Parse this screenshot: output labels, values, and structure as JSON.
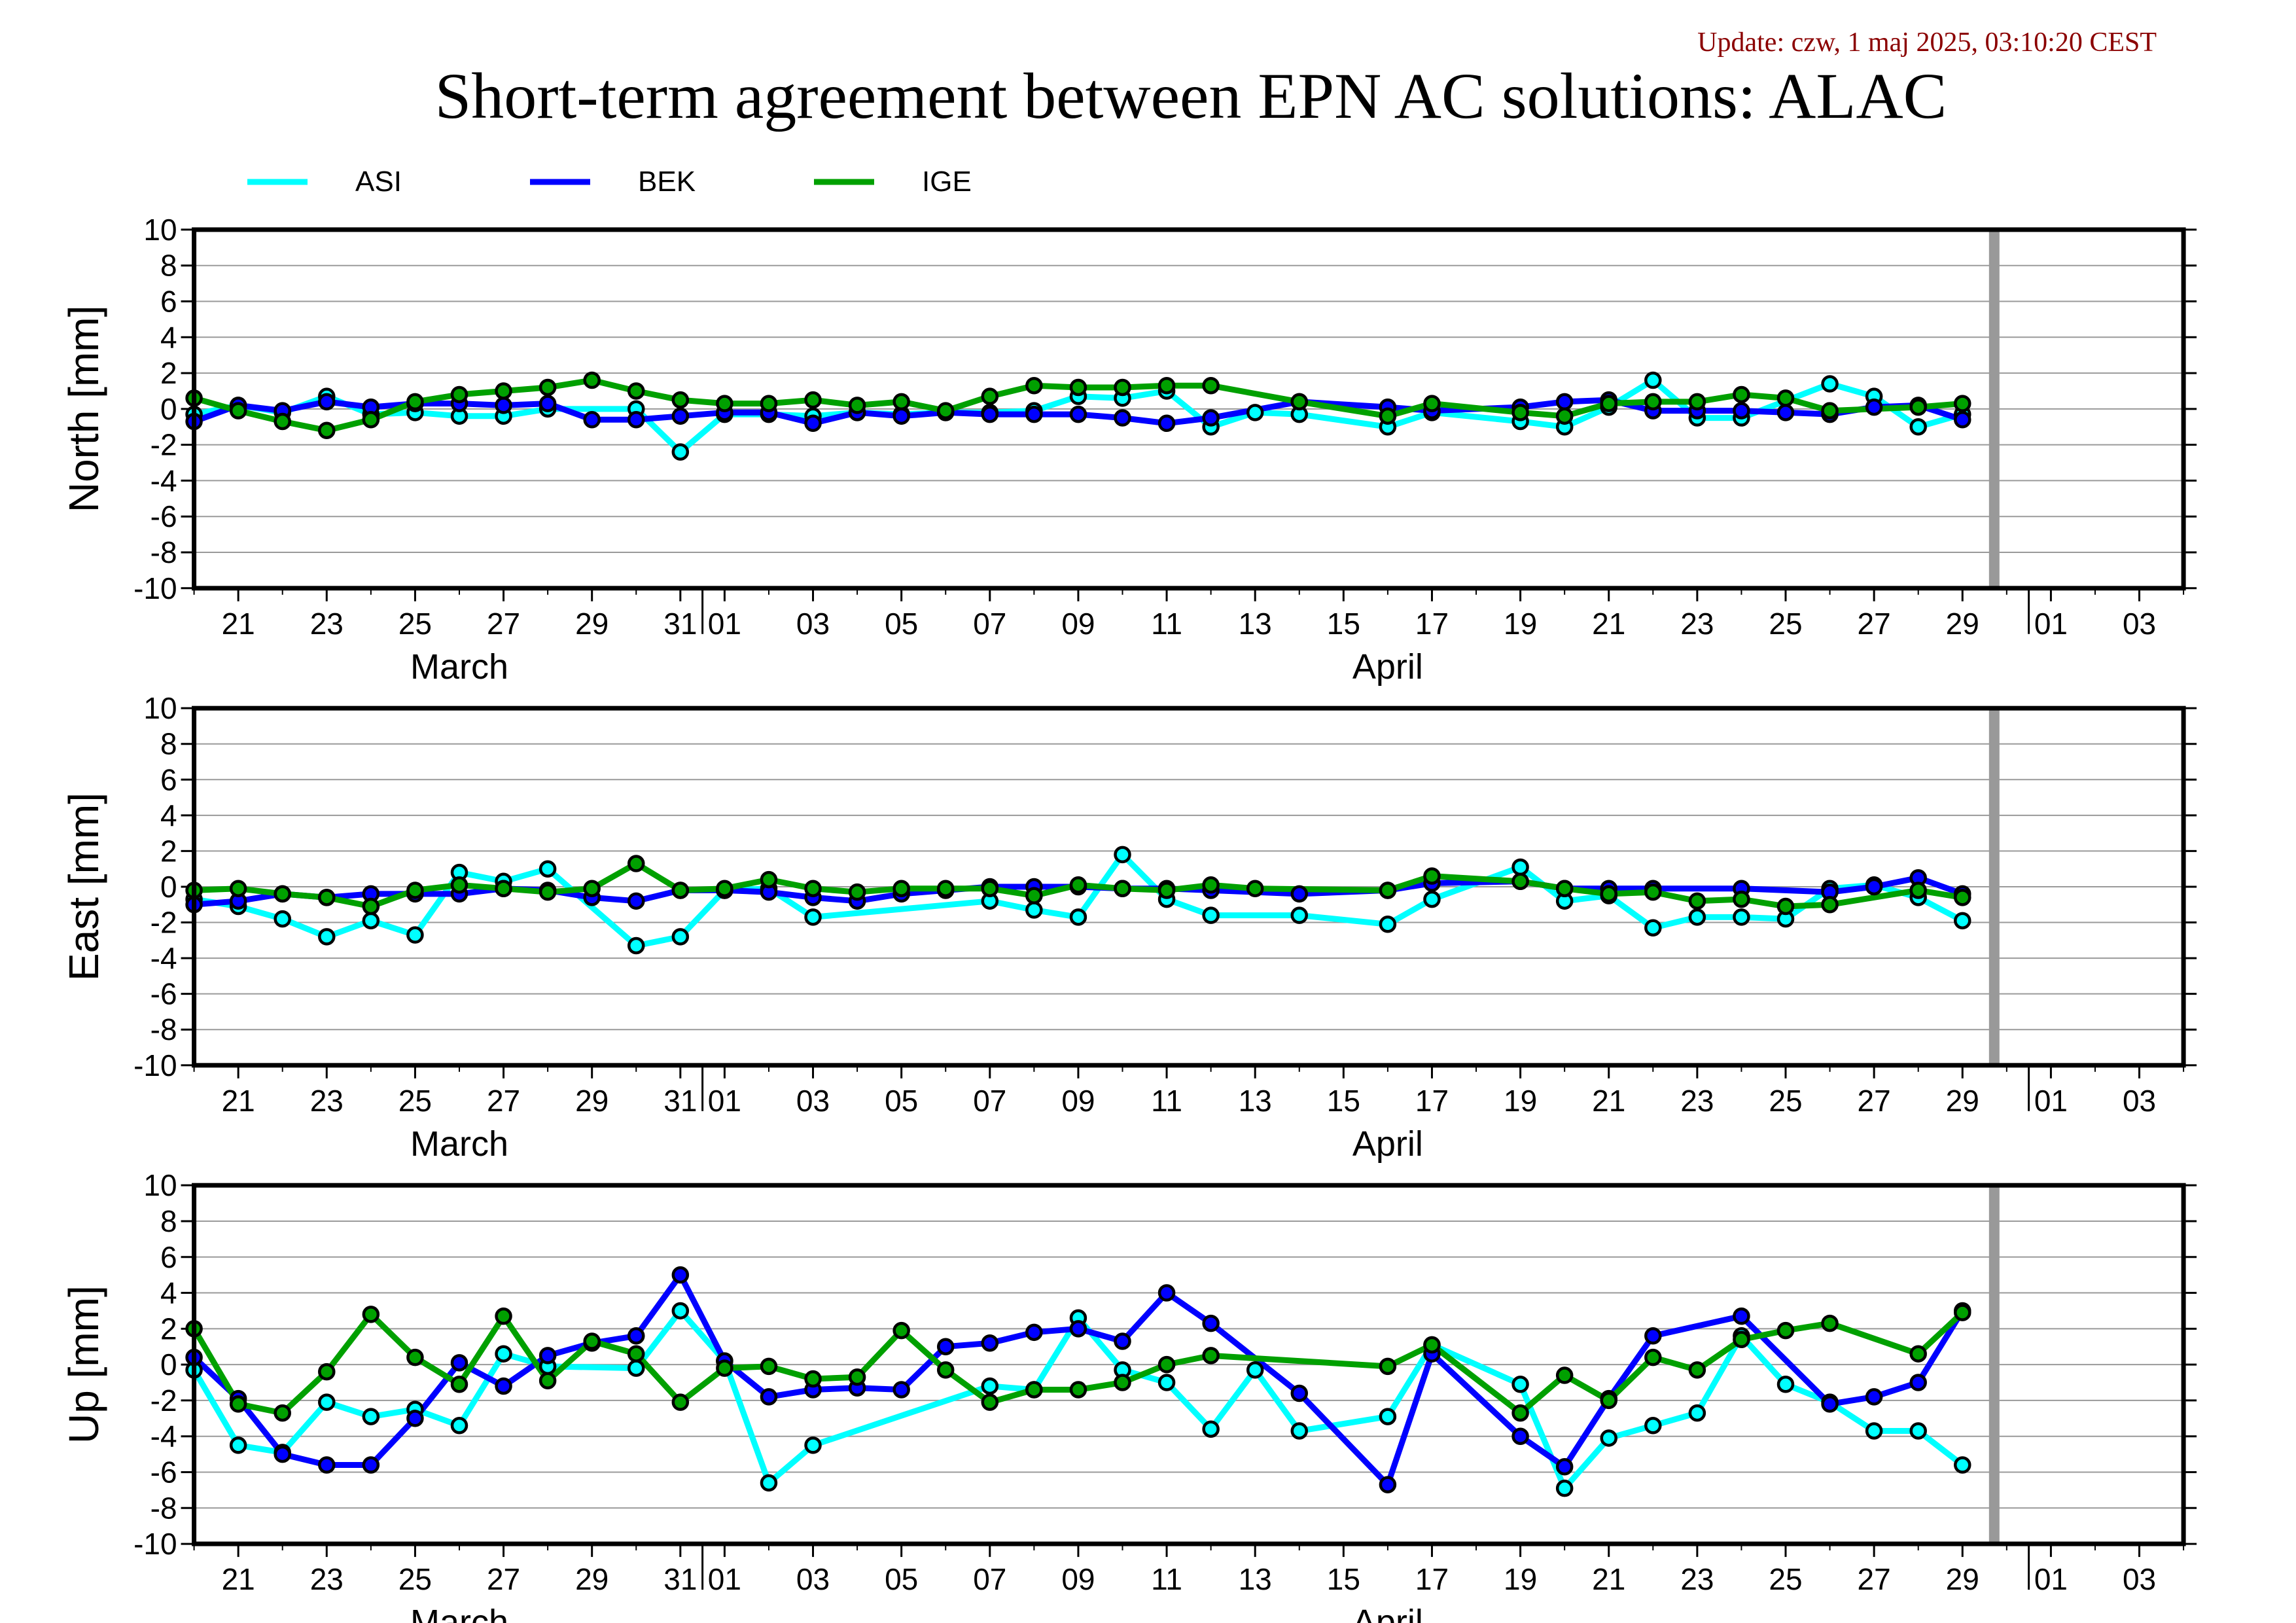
{
  "header": {
    "update_text": "Update: czw, 1 maj 2025, 03:10:20 CEST",
    "title": "Short-term agreement between EPN AC solutions: ALAC",
    "update_color": "#8b0000"
  },
  "legend": [
    {
      "name": "ASI",
      "color": "#00ffff"
    },
    {
      "name": "BEK",
      "color": "#0000ff"
    },
    {
      "name": "IGE",
      "color": "#00a000"
    }
  ],
  "chart_data": [
    {
      "type": "line",
      "ylabel": "North [mm]",
      "ylim": [
        -10,
        10
      ],
      "y_ticks": [
        "10",
        "8",
        "6",
        "4",
        "2",
        "0",
        "-2",
        "-4",
        "-6",
        "-8",
        "-10"
      ],
      "x_ticks": [
        "21",
        "23",
        "25",
        "27",
        "29",
        "31",
        "01",
        "03",
        "05",
        "07",
        "09",
        "11",
        "13",
        "15",
        "17",
        "19",
        "21",
        "23",
        "25",
        "27",
        "29",
        "01",
        "03"
      ],
      "months": [
        "March",
        "April"
      ],
      "x_range": [
        "2025-03-20",
        "2025-05-04"
      ],
      "marker_date": "2025-04-30",
      "grid": true,
      "series": [
        {
          "name": "ASI",
          "x": [
            "2025-03-20",
            "2025-03-21",
            "2025-03-22",
            "2025-03-23",
            "2025-03-24",
            "2025-03-25",
            "2025-03-26",
            "2025-03-27",
            "2025-03-28",
            "2025-03-30",
            "2025-03-31",
            "2025-04-01",
            "2025-04-02",
            "2025-04-03",
            "2025-04-04",
            "2025-04-05",
            "2025-04-06",
            "2025-04-07",
            "2025-04-08",
            "2025-04-09",
            "2025-04-10",
            "2025-04-11",
            "2025-04-12",
            "2025-04-13",
            "2025-04-14",
            "2025-04-16",
            "2025-04-17",
            "2025-04-19",
            "2025-04-20",
            "2025-04-21",
            "2025-04-22",
            "2025-04-23",
            "2025-04-24",
            "2025-04-26",
            "2025-04-27",
            "2025-04-28",
            "2025-04-29"
          ],
          "values": [
            -0.3,
            0.2,
            -0.2,
            0.7,
            -0.3,
            -0.2,
            -0.4,
            -0.4,
            0.0,
            0.0,
            -2.4,
            -0.3,
            -0.3,
            -0.4,
            -0.2,
            -0.3,
            -0.2,
            -0.2,
            -0.1,
            0.7,
            0.6,
            1.0,
            -1.0,
            -0.2,
            -0.3,
            -1.0,
            -0.2,
            -0.7,
            -1.0,
            0.1,
            1.6,
            -0.5,
            -0.5,
            1.4,
            0.7,
            -1.0,
            -0.3
          ]
        },
        {
          "name": "BEK",
          "x": [
            "2025-03-20",
            "2025-03-21",
            "2025-03-22",
            "2025-03-23",
            "2025-03-24",
            "2025-03-25",
            "2025-03-26",
            "2025-03-27",
            "2025-03-28",
            "2025-03-29",
            "2025-03-30",
            "2025-03-31",
            "2025-04-01",
            "2025-04-02",
            "2025-04-03",
            "2025-04-04",
            "2025-04-05",
            "2025-04-06",
            "2025-04-07",
            "2025-04-08",
            "2025-04-09",
            "2025-04-10",
            "2025-04-11",
            "2025-04-12",
            "2025-04-14",
            "2025-04-16",
            "2025-04-17",
            "2025-04-19",
            "2025-04-20",
            "2025-04-21",
            "2025-04-22",
            "2025-04-23",
            "2025-04-24",
            "2025-04-25",
            "2025-04-26",
            "2025-04-27",
            "2025-04-28",
            "2025-04-29"
          ],
          "values": [
            -0.7,
            0.2,
            -0.1,
            0.4,
            0.1,
            0.3,
            0.3,
            0.2,
            0.3,
            -0.6,
            -0.6,
            -0.4,
            -0.2,
            -0.2,
            -0.8,
            -0.2,
            -0.4,
            -0.2,
            -0.3,
            -0.3,
            -0.3,
            -0.5,
            -0.8,
            -0.5,
            0.4,
            0.1,
            -0.1,
            0.1,
            0.4,
            0.5,
            -0.1,
            -0.1,
            -0.1,
            -0.2,
            -0.3,
            0.1,
            0.2,
            -0.6
          ]
        },
        {
          "name": "IGE",
          "x": [
            "2025-03-20",
            "2025-03-21",
            "2025-03-22",
            "2025-03-23",
            "2025-03-24",
            "2025-03-25",
            "2025-03-26",
            "2025-03-27",
            "2025-03-28",
            "2025-03-29",
            "2025-03-30",
            "2025-03-31",
            "2025-04-01",
            "2025-04-02",
            "2025-04-03",
            "2025-04-04",
            "2025-04-05",
            "2025-04-06",
            "2025-04-07",
            "2025-04-08",
            "2025-04-09",
            "2025-04-10",
            "2025-04-11",
            "2025-04-12",
            "2025-04-14",
            "2025-04-16",
            "2025-04-17",
            "2025-04-19",
            "2025-04-20",
            "2025-04-21",
            "2025-04-22",
            "2025-04-23",
            "2025-04-24",
            "2025-04-25",
            "2025-04-26",
            "2025-04-28",
            "2025-04-29"
          ],
          "values": [
            0.6,
            -0.1,
            -0.7,
            -1.2,
            -0.6,
            0.4,
            0.8,
            1.0,
            1.2,
            1.6,
            1.0,
            0.5,
            0.3,
            0.3,
            0.5,
            0.2,
            0.4,
            -0.1,
            0.7,
            1.3,
            1.2,
            1.2,
            1.3,
            1.3,
            0.4,
            -0.4,
            0.3,
            -0.2,
            -0.4,
            0.3,
            0.4,
            0.4,
            0.8,
            0.6,
            -0.1,
            0.1,
            0.3
          ]
        }
      ]
    },
    {
      "type": "line",
      "ylabel": "East [mm]",
      "ylim": [
        -10,
        10
      ],
      "y_ticks": [
        "10",
        "8",
        "6",
        "4",
        "2",
        "0",
        "-2",
        "-4",
        "-6",
        "-8",
        "-10"
      ],
      "x_ticks": [
        "21",
        "23",
        "25",
        "27",
        "29",
        "31",
        "01",
        "03",
        "05",
        "07",
        "09",
        "11",
        "13",
        "15",
        "17",
        "19",
        "21",
        "23",
        "25",
        "27",
        "29",
        "01",
        "03"
      ],
      "months": [
        "March",
        "April"
      ],
      "x_range": [
        "2025-03-20",
        "2025-05-04"
      ],
      "marker_date": "2025-04-30",
      "grid": true,
      "series": [
        {
          "name": "ASI",
          "x": [
            "2025-03-20",
            "2025-03-21",
            "2025-03-22",
            "2025-03-23",
            "2025-03-24",
            "2025-03-25",
            "2025-03-26",
            "2025-03-27",
            "2025-03-28",
            "2025-03-30",
            "2025-03-31",
            "2025-04-01",
            "2025-04-02",
            "2025-04-03",
            "2025-04-07",
            "2025-04-08",
            "2025-04-09",
            "2025-04-10",
            "2025-04-11",
            "2025-04-12",
            "2025-04-14",
            "2025-04-16",
            "2025-04-17",
            "2025-04-19",
            "2025-04-20",
            "2025-04-21",
            "2025-04-22",
            "2025-04-23",
            "2025-04-24",
            "2025-04-25",
            "2025-04-26",
            "2025-04-27",
            "2025-04-28",
            "2025-04-29"
          ],
          "values": [
            -0.7,
            -1.1,
            -1.8,
            -2.8,
            -1.9,
            -2.7,
            0.8,
            0.3,
            1.0,
            -3.3,
            -2.8,
            -0.2,
            -0.1,
            -1.7,
            -0.8,
            -1.3,
            -1.7,
            1.8,
            -0.7,
            -1.6,
            -1.6,
            -2.1,
            -0.7,
            1.1,
            -0.8,
            -0.5,
            -2.3,
            -1.7,
            -1.7,
            -1.8,
            -0.1,
            0.1,
            -0.6,
            -1.9
          ]
        },
        {
          "name": "BEK",
          "x": [
            "2025-03-20",
            "2025-03-21",
            "2025-03-22",
            "2025-03-23",
            "2025-03-24",
            "2025-03-25",
            "2025-03-26",
            "2025-03-27",
            "2025-03-28",
            "2025-03-29",
            "2025-03-30",
            "2025-03-31",
            "2025-04-01",
            "2025-04-02",
            "2025-04-03",
            "2025-04-04",
            "2025-04-05",
            "2025-04-06",
            "2025-04-07",
            "2025-04-08",
            "2025-04-09",
            "2025-04-10",
            "2025-04-11",
            "2025-04-12",
            "2025-04-14",
            "2025-04-16",
            "2025-04-17",
            "2025-04-19",
            "2025-04-20",
            "2025-04-21",
            "2025-04-22",
            "2025-04-24",
            "2025-04-26",
            "2025-04-27",
            "2025-04-28",
            "2025-04-29"
          ],
          "values": [
            -1.0,
            -0.8,
            -0.4,
            -0.6,
            -0.4,
            -0.4,
            -0.4,
            -0.1,
            -0.2,
            -0.6,
            -0.8,
            -0.2,
            -0.2,
            -0.3,
            -0.6,
            -0.8,
            -0.4,
            -0.2,
            0.0,
            0.0,
            0.0,
            -0.1,
            -0.1,
            -0.2,
            -0.4,
            -0.2,
            0.2,
            0.3,
            -0.1,
            -0.1,
            -0.1,
            -0.1,
            -0.3,
            0.0,
            0.5,
            -0.4
          ]
        },
        {
          "name": "IGE",
          "x": [
            "2025-03-20",
            "2025-03-21",
            "2025-03-22",
            "2025-03-23",
            "2025-03-24",
            "2025-03-25",
            "2025-03-26",
            "2025-03-27",
            "2025-03-28",
            "2025-03-29",
            "2025-03-30",
            "2025-03-31",
            "2025-04-01",
            "2025-04-02",
            "2025-04-03",
            "2025-04-04",
            "2025-04-05",
            "2025-04-06",
            "2025-04-07",
            "2025-04-08",
            "2025-04-09",
            "2025-04-10",
            "2025-04-11",
            "2025-04-12",
            "2025-04-13",
            "2025-04-16",
            "2025-04-17",
            "2025-04-19",
            "2025-04-20",
            "2025-04-21",
            "2025-04-22",
            "2025-04-23",
            "2025-04-24",
            "2025-04-25",
            "2025-04-26",
            "2025-04-28",
            "2025-04-29"
          ],
          "values": [
            -0.2,
            -0.1,
            -0.4,
            -0.6,
            -1.1,
            -0.2,
            0.1,
            -0.1,
            -0.3,
            -0.1,
            1.3,
            -0.2,
            -0.1,
            0.4,
            -0.1,
            -0.3,
            -0.1,
            -0.1,
            -0.1,
            -0.5,
            0.1,
            -0.1,
            -0.2,
            0.1,
            -0.1,
            -0.2,
            0.6,
            0.3,
            -0.1,
            -0.4,
            -0.3,
            -0.8,
            -0.7,
            -1.1,
            -1.0,
            -0.2,
            -0.6
          ]
        }
      ]
    },
    {
      "type": "line",
      "ylabel": "Up [mm]",
      "ylim": [
        -10,
        10
      ],
      "y_ticks": [
        "10",
        "8",
        "6",
        "4",
        "2",
        "0",
        "-2",
        "-4",
        "-6",
        "-8",
        "-10"
      ],
      "x_ticks": [
        "21",
        "23",
        "25",
        "27",
        "29",
        "31",
        "01",
        "03",
        "05",
        "07",
        "09",
        "11",
        "13",
        "15",
        "17",
        "19",
        "21",
        "23",
        "25",
        "27",
        "29",
        "01",
        "03"
      ],
      "months": [
        "March",
        "April"
      ],
      "x_range": [
        "2025-03-20",
        "2025-05-04"
      ],
      "marker_date": "2025-04-30",
      "grid": true,
      "series": [
        {
          "name": "ASI",
          "x": [
            "2025-03-20",
            "2025-03-21",
            "2025-03-22",
            "2025-03-23",
            "2025-03-24",
            "2025-03-25",
            "2025-03-26",
            "2025-03-27",
            "2025-03-28",
            "2025-03-30",
            "2025-03-31",
            "2025-04-01",
            "2025-04-02",
            "2025-04-03",
            "2025-04-07",
            "2025-04-08",
            "2025-04-09",
            "2025-04-10",
            "2025-04-11",
            "2025-04-12",
            "2025-04-13",
            "2025-04-14",
            "2025-04-16",
            "2025-04-17",
            "2025-04-19",
            "2025-04-20",
            "2025-04-21",
            "2025-04-22",
            "2025-04-23",
            "2025-04-24",
            "2025-04-25",
            "2025-04-26",
            "2025-04-27",
            "2025-04-28",
            "2025-04-29"
          ],
          "values": [
            -0.3,
            -4.5,
            -4.9,
            -2.1,
            -2.9,
            -2.5,
            -3.4,
            0.6,
            -0.1,
            -0.2,
            3.0,
            0.2,
            -6.6,
            -4.5,
            -1.2,
            -1.4,
            2.6,
            -0.3,
            -1.0,
            -3.6,
            -0.3,
            -3.7,
            -2.9,
            1.1,
            -1.1,
            -6.9,
            -4.1,
            -3.4,
            -2.7,
            1.6,
            -1.1,
            -2.1,
            -3.7,
            -3.7,
            -5.6
          ]
        },
        {
          "name": "BEK",
          "x": [
            "2025-03-20",
            "2025-03-21",
            "2025-03-22",
            "2025-03-23",
            "2025-03-24",
            "2025-03-25",
            "2025-03-26",
            "2025-03-27",
            "2025-03-28",
            "2025-03-29",
            "2025-03-30",
            "2025-03-31",
            "2025-04-01",
            "2025-04-02",
            "2025-04-03",
            "2025-04-04",
            "2025-04-05",
            "2025-04-06",
            "2025-04-07",
            "2025-04-08",
            "2025-04-09",
            "2025-04-10",
            "2025-04-11",
            "2025-04-12",
            "2025-04-14",
            "2025-04-16",
            "2025-04-17",
            "2025-04-19",
            "2025-04-20",
            "2025-04-21",
            "2025-04-22",
            "2025-04-24",
            "2025-04-26",
            "2025-04-27",
            "2025-04-28",
            "2025-04-29"
          ],
          "values": [
            0.4,
            -1.9,
            -5.0,
            -5.6,
            -5.6,
            -3.0,
            0.1,
            -1.2,
            0.5,
            1.2,
            1.6,
            5.0,
            0.2,
            -1.8,
            -1.4,
            -1.3,
            -1.4,
            1.0,
            1.2,
            1.8,
            2.0,
            1.3,
            4.0,
            2.3,
            -1.6,
            -6.7,
            0.6,
            -4.0,
            -5.7,
            -1.9,
            1.6,
            2.7,
            -2.2,
            -1.8,
            -1.0,
            3.0
          ]
        },
        {
          "name": "IGE",
          "x": [
            "2025-03-20",
            "2025-03-21",
            "2025-03-22",
            "2025-03-23",
            "2025-03-24",
            "2025-03-25",
            "2025-03-26",
            "2025-03-27",
            "2025-03-28",
            "2025-03-29",
            "2025-03-30",
            "2025-03-31",
            "2025-04-01",
            "2025-04-02",
            "2025-04-03",
            "2025-04-04",
            "2025-04-05",
            "2025-04-06",
            "2025-04-07",
            "2025-04-08",
            "2025-04-09",
            "2025-04-10",
            "2025-04-11",
            "2025-04-12",
            "2025-04-16",
            "2025-04-17",
            "2025-04-19",
            "2025-04-20",
            "2025-04-21",
            "2025-04-22",
            "2025-04-23",
            "2025-04-24",
            "2025-04-25",
            "2025-04-26",
            "2025-04-28",
            "2025-04-29"
          ],
          "values": [
            2.0,
            -2.2,
            -2.7,
            -0.4,
            2.8,
            0.4,
            -1.1,
            2.7,
            -0.9,
            1.3,
            0.6,
            -2.1,
            -0.2,
            -0.1,
            -0.8,
            -0.7,
            1.9,
            -0.3,
            -2.1,
            -1.4,
            -1.4,
            -1.0,
            0.0,
            0.5,
            -0.1,
            1.1,
            -2.7,
            -0.6,
            -2.0,
            0.4,
            -0.3,
            1.4,
            1.9,
            2.3,
            0.6,
            2.9
          ]
        }
      ]
    }
  ]
}
